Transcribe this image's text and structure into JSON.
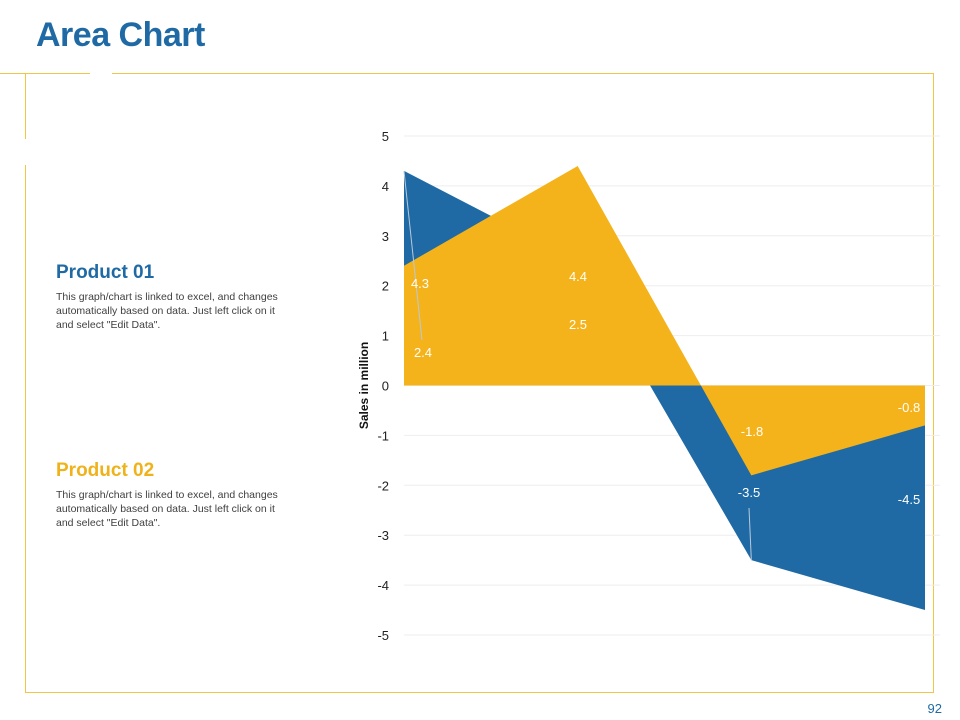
{
  "title": "Area Chart",
  "page_number": "92",
  "products": [
    {
      "name": "Product 01",
      "description": "This graph/chart is linked to excel, and changes automatically based on data. Just left click on it and select \"Edit Data\"."
    },
    {
      "name": "Product 02",
      "description": "This graph/chart is linked to excel, and changes automatically based on data. Just left click on it and select \"Edit Data\"."
    }
  ],
  "chart_data": {
    "type": "area",
    "title": "",
    "xlabel": "",
    "ylabel": "Sales in million",
    "ylim": [
      -5,
      5
    ],
    "yticks": [
      5,
      4,
      3,
      2,
      1,
      0,
      -1,
      -2,
      -3,
      -4,
      -5
    ],
    "categories": [
      "",
      "",
      "",
      ""
    ],
    "series": [
      {
        "name": "Product 01",
        "color": "#1f6aa5",
        "values": [
          4.3,
          2.5,
          -3.5,
          -4.5
        ],
        "labels": [
          "4.3",
          "2.5",
          "-3.5",
          "-4.5"
        ]
      },
      {
        "name": "Product 02",
        "color": "#f5b31b",
        "values": [
          2.4,
          4.4,
          -1.8,
          -0.8
        ],
        "labels": [
          "2.4",
          "4.4",
          "-1.8",
          "-0.8"
        ]
      }
    ],
    "grid": true,
    "legend": "none"
  },
  "colors": {
    "accent_blue": "#1f6aa5",
    "accent_yellow": "#f5b31b",
    "frame": "#f0c54a"
  }
}
